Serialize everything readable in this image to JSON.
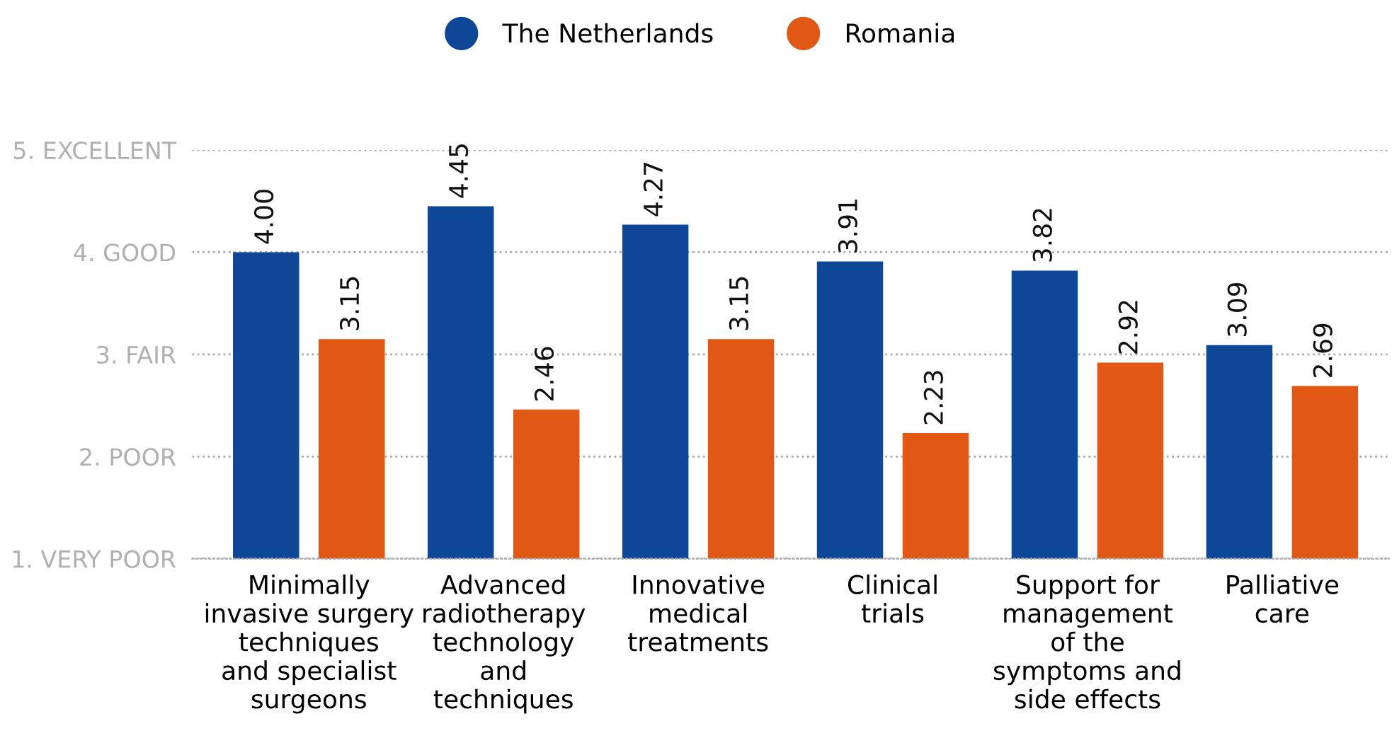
{
  "chart_data": {
    "type": "bar",
    "categories": [
      "Minimally\ninvasive surgery\ntechniques\nand specialist\nsurgeons",
      "Advanced\nradiotherapy\ntechnology\nand\ntechniques",
      "Innovative\nmedical\ntreatments",
      "Clinical\ntrials",
      "Support for\nmanagement\nof the\nsymptoms and\nside effects",
      "Palliative\ncare"
    ],
    "series": [
      {
        "name": "The Netherlands",
        "color": "#0e4797",
        "values": [
          4.0,
          4.45,
          4.27,
          3.91,
          3.82,
          3.09
        ],
        "value_labels": [
          "4.00",
          "4.45",
          "4.27",
          "3.91",
          "3.82",
          "3.09"
        ]
      },
      {
        "name": "Romania",
        "color": "#e05814",
        "values": [
          3.15,
          2.46,
          3.15,
          2.23,
          2.92,
          2.69
        ],
        "value_labels": [
          "3.15",
          "2.46",
          "3.15",
          "2.23",
          "2.92",
          "2.69"
        ]
      }
    ],
    "ylim": [
      1,
      5
    ],
    "yticks": [
      {
        "value": 1,
        "label": "1. VERY POOR"
      },
      {
        "value": 2,
        "label": "2. POOR"
      },
      {
        "value": 3,
        "label": "3. FAIR"
      },
      {
        "value": 4,
        "label": "4. GOOD"
      },
      {
        "value": 5,
        "label": "5. EXCELLENT"
      }
    ],
    "grid": "y",
    "legend": "top"
  }
}
